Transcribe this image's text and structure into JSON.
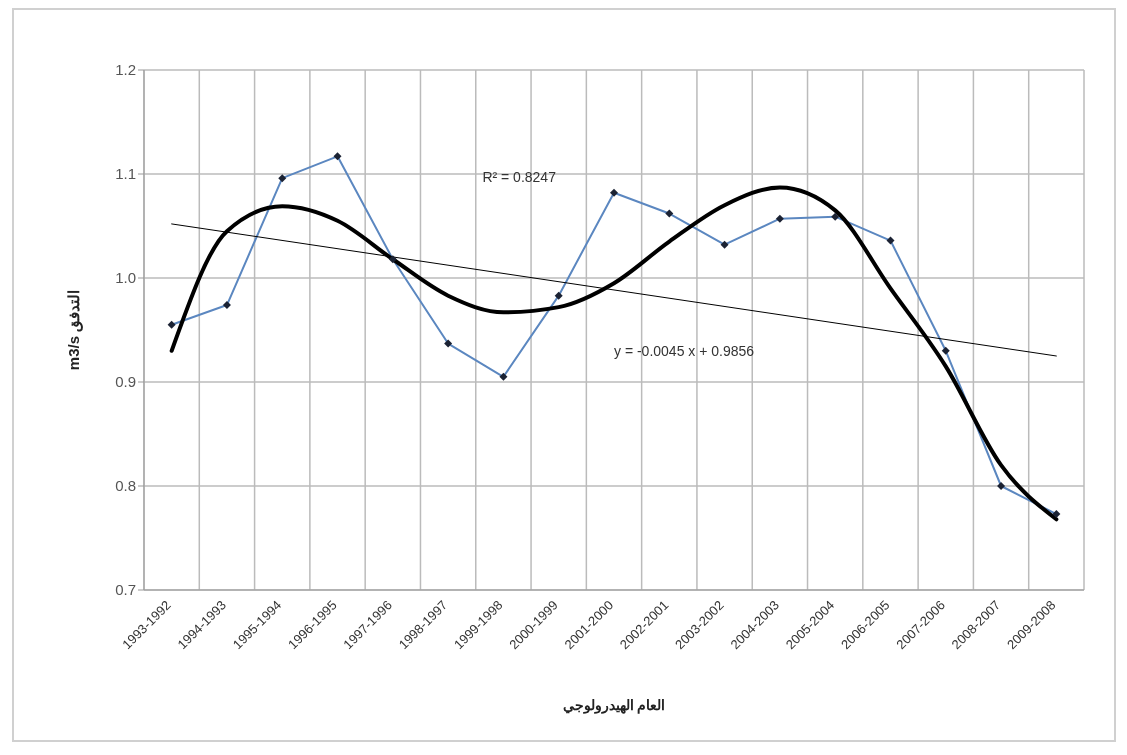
{
  "chart_data": {
    "type": "line",
    "xlabel": "العام الهيدرولوجي",
    "ylabel": "m3/s التدفق",
    "categories": [
      "1993-1992",
      "1994-1993",
      "1995-1994",
      "1996-1995",
      "1997-1996",
      "1998-1997",
      "1999-1998",
      "2000-1999",
      "2001-2000",
      "2002-2001",
      "2003-2002",
      "2004-2003",
      "2005-2004",
      "2006-2005",
      "2007-2006",
      "2008-2007",
      "2009-2008"
    ],
    "series": [
      {
        "color": "#5b87c0",
        "marker": "diamond",
        "values": [
          0.955,
          0.974,
          1.096,
          1.117,
          1.018,
          0.937,
          0.905,
          0.983,
          1.082,
          1.062,
          1.032,
          1.057,
          1.059,
          1.036,
          0.93,
          0.8,
          0.773
        ]
      },
      {
        "color": "#000000",
        "type": "line",
        "x": [
          "1993-1992",
          "2009-2008"
        ],
        "values": [
          1.052,
          0.925
        ]
      },
      {
        "color": "#000000",
        "type": "line",
        "values": [
          0.93,
          1.045,
          1.069,
          1.055,
          1.018,
          0.983,
          0.967,
          0.972,
          0.995,
          1.035,
          1.07,
          1.087,
          1.065,
          0.99,
          0.915,
          0.82,
          0.768
        ]
      }
    ],
    "ylim": [
      0.7,
      1.2
    ],
    "yticks": [
      {
        "value": 0.7,
        "label": "0.7"
      },
      {
        "value": 0.8,
        "label": "0.8"
      },
      {
        "value": 0.9,
        "label": "0.9"
      },
      {
        "value": 1.0,
        "label": "1.0"
      },
      {
        "value": 1.1,
        "label": "1.1"
      },
      {
        "value": 1.2,
        "label": "1.2"
      }
    ],
    "grid": true,
    "annotations": [
      "R² = 0.8247",
      "y = -0.0045 x + 0.9856"
    ]
  }
}
